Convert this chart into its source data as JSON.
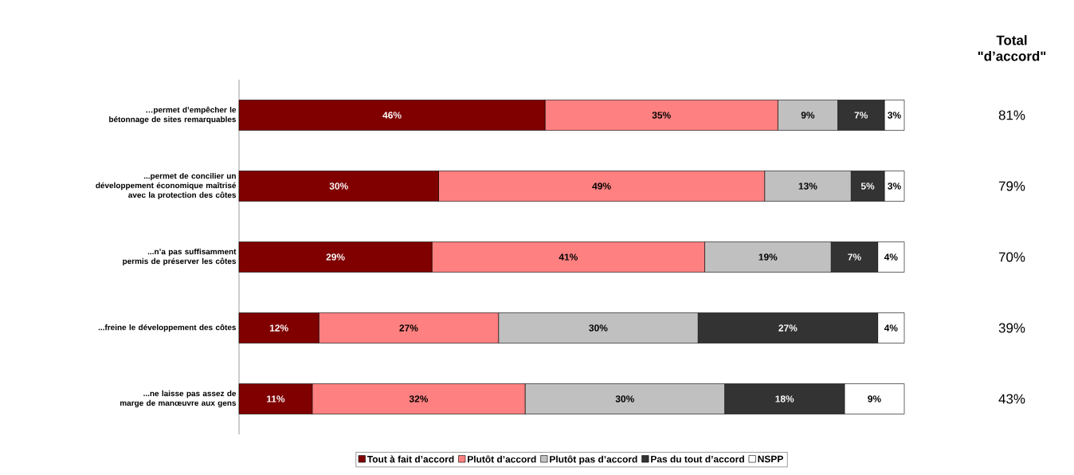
{
  "chart_data": {
    "type": "bar",
    "orientation": "horizontal",
    "stacked": true,
    "legend": "bottom",
    "tick_labels": "y",
    "categories": [
      "…permet d’empêcher le bétonnage de sites remarquables",
      "...permet de concilier un développement économique maîtrisé avec la protection des côtes",
      "...n’a pas suffisamment permis de préserver les côtes",
      "...freine le développement des côtes",
      "...ne laisse pas assez de marge de manœuvre aux gens"
    ],
    "series": [
      {
        "name": "Tout à fait d’accord",
        "color": "#800000",
        "values": [
          46,
          30,
          29,
          12,
          11
        ],
        "value_labels": [
          "46%",
          "30%",
          "29%",
          "12%",
          "11%"
        ]
      },
      {
        "name": "Plutôt d’accord",
        "color": "#ff8080",
        "values": [
          35,
          49,
          41,
          27,
          32
        ],
        "value_labels": [
          "35%",
          "49%",
          "41%",
          "27%",
          "32%"
        ]
      },
      {
        "name": "Plutôt pas d’accord",
        "color": "#c0c0c0",
        "values": [
          9,
          13,
          19,
          30,
          30
        ],
        "value_labels": [
          "9%",
          "13%",
          "19%",
          "30%",
          "30%"
        ]
      },
      {
        "name": "Pas du tout d’accord",
        "color": "#333333",
        "values": [
          7,
          5,
          7,
          27,
          18
        ],
        "value_labels": [
          "7%",
          "5%",
          "7%",
          "27%",
          "18%"
        ]
      },
      {
        "name": "NSPP",
        "color": "#ffffff",
        "values": [
          3,
          3,
          4,
          4,
          9
        ],
        "value_labels": [
          "3%",
          "3%",
          "4%",
          "4%",
          "9%"
        ]
      }
    ],
    "annotations": [
      "Total \"d’accord\"",
      "81%",
      "79%",
      "70%",
      "39%",
      "43%"
    ]
  }
}
